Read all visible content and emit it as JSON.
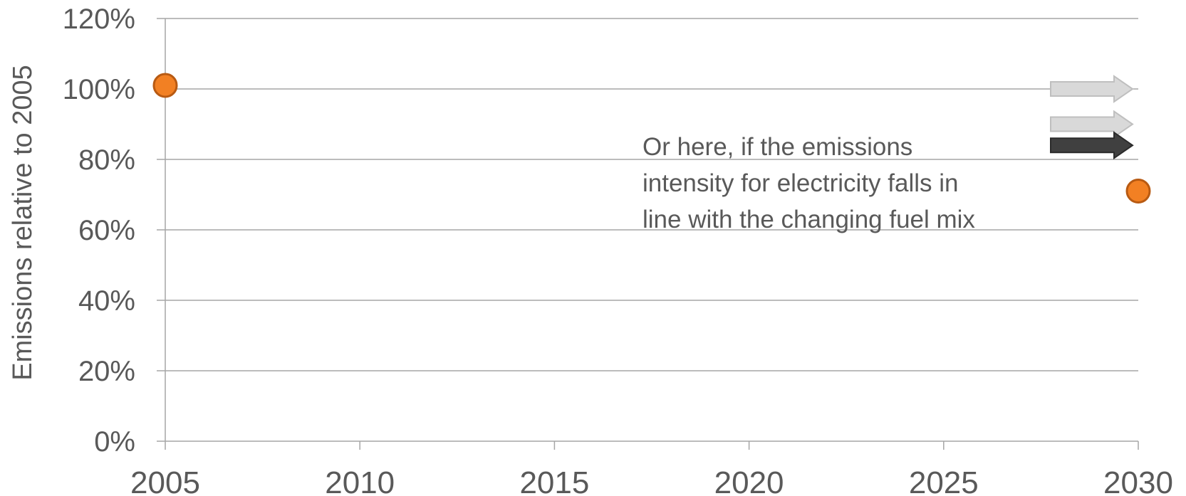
{
  "chart_data": {
    "type": "scatter",
    "title": "",
    "xlabel": "",
    "ylabel": "Emissions relative to 2005",
    "xlim": [
      2005,
      2030
    ],
    "ylim": [
      0,
      1.2
    ],
    "x_ticks": [
      "2005",
      "2010",
      "2015",
      "2020",
      "2025",
      "2030"
    ],
    "y_ticks": [
      "0%",
      "20%",
      "40%",
      "60%",
      "80%",
      "100%",
      "120%"
    ],
    "grid": true,
    "legend": "none",
    "series": [
      {
        "points": [
          {
            "x": 2005,
            "y": 1.01
          },
          {
            "x": 2030,
            "y": 0.71
          }
        ]
      }
    ],
    "annotation": {
      "lines": [
        "Or here, if the emissions",
        "intensity for electricity falls in",
        "line with the changing fuel mix"
      ]
    },
    "arrows": [
      {
        "y": 1.0,
        "style": "light"
      },
      {
        "y": 0.9,
        "style": "light"
      },
      {
        "y": 0.84,
        "style": "dark"
      }
    ],
    "colors": {
      "marker_fill": "#F28023",
      "marker_stroke": "#B85A12",
      "grid": "#A6A6A6",
      "text": "#595959",
      "arrow_light": "#D9D9D9",
      "arrow_light_stroke": "#BFBFBF",
      "arrow_dark": "#404040"
    }
  }
}
